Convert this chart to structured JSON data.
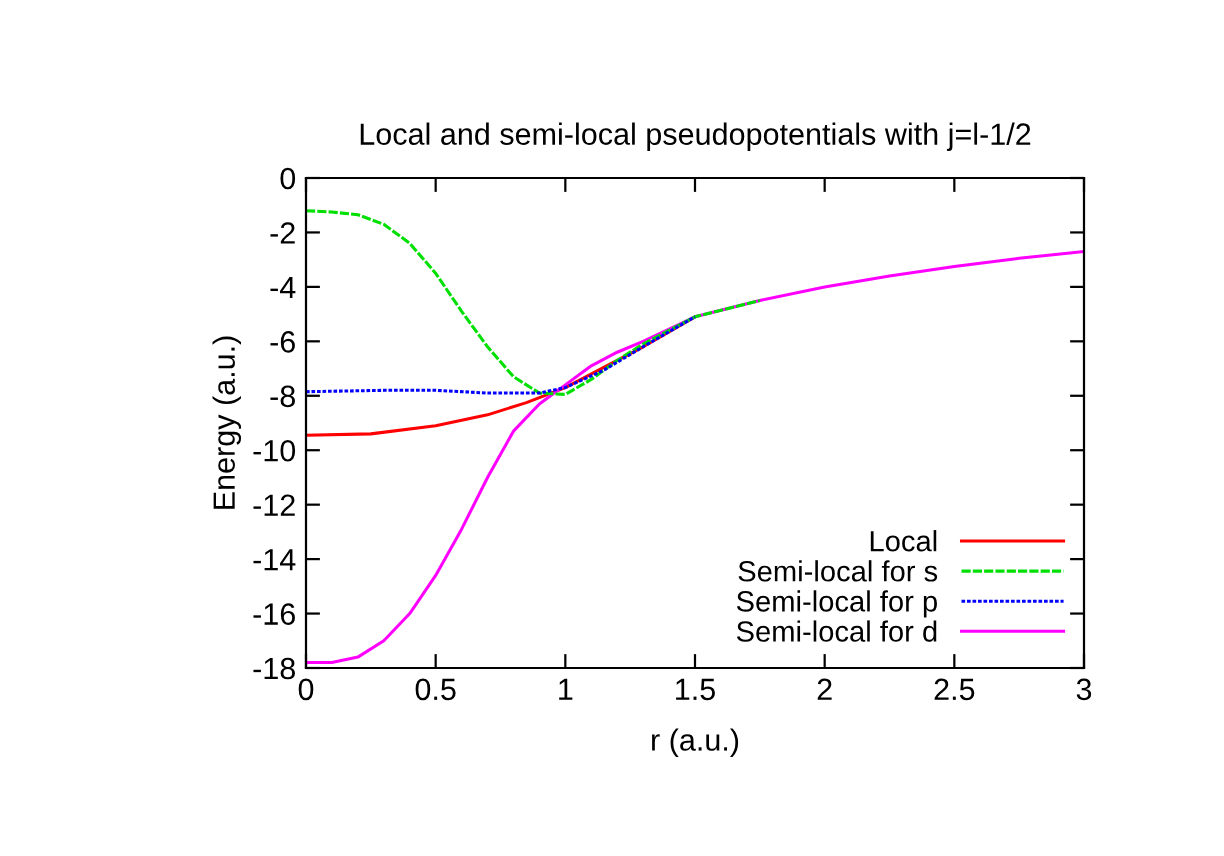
{
  "chart_data": {
    "type": "line",
    "title": "Local and semi-local pseudopotentials with j=l-1/2",
    "xlabel": "r (a.u.)",
    "ylabel": "Energy (a.u.)",
    "xlim": [
      0,
      3
    ],
    "xticks": [
      0,
      0.5,
      1,
      1.5,
      2,
      2.5,
      3
    ],
    "ylim": [
      -18,
      0
    ],
    "yticks": [
      0,
      -2,
      -4,
      -6,
      -8,
      -10,
      -12,
      -14,
      -16,
      -18
    ],
    "grid": false,
    "legend": "bottom right",
    "marker": "none",
    "series": [
      {
        "name": "Local",
        "color": "#ff0000",
        "line_style": "solid",
        "x": [
          0,
          0.25,
          0.5,
          0.7,
          0.85,
          1.0,
          1.15,
          1.3,
          1.5
        ],
        "values": [
          -9.45,
          -9.4,
          -9.1,
          -8.7,
          -8.25,
          -7.7,
          -6.95,
          -6.2,
          -5.1
        ]
      },
      {
        "name": "Semi-local for s",
        "color": "#00e000",
        "line_style": "dashed",
        "x": [
          0,
          0.1,
          0.2,
          0.3,
          0.4,
          0.5,
          0.6,
          0.7,
          0.8,
          0.9,
          1.0,
          1.1,
          1.2,
          1.3,
          1.5,
          1.75
        ],
        "values": [
          -1.2,
          -1.25,
          -1.35,
          -1.7,
          -2.4,
          -3.5,
          -4.9,
          -6.2,
          -7.3,
          -7.9,
          -7.95,
          -7.4,
          -6.7,
          -6.1,
          -5.1,
          -4.5
        ]
      },
      {
        "name": "Semi-local for p",
        "color": "#0000ff",
        "line_style": "dotted",
        "x": [
          0,
          0.3,
          0.5,
          0.7,
          0.9,
          1.0,
          1.15,
          1.3,
          1.5
        ],
        "values": [
          -7.85,
          -7.8,
          -7.8,
          -7.9,
          -7.9,
          -7.7,
          -7.05,
          -6.2,
          -5.1
        ]
      },
      {
        "name": "Semi-local for d",
        "color": "#ff00ff",
        "line_style": "solid",
        "x": [
          0,
          0.1,
          0.2,
          0.3,
          0.4,
          0.5,
          0.6,
          0.7,
          0.8,
          0.9,
          1.0,
          1.1,
          1.2,
          1.3,
          1.5,
          1.75,
          2,
          2.25,
          2.5,
          2.75,
          3
        ],
        "values": [
          -17.8,
          -17.8,
          -17.6,
          -17.0,
          -16.0,
          -14.6,
          -12.9,
          -11.0,
          -9.3,
          -8.3,
          -7.6,
          -6.9,
          -6.4,
          -6.0,
          -5.1,
          -4.5,
          -4.0,
          -3.6,
          -3.25,
          -2.95,
          -2.7
        ]
      }
    ]
  }
}
